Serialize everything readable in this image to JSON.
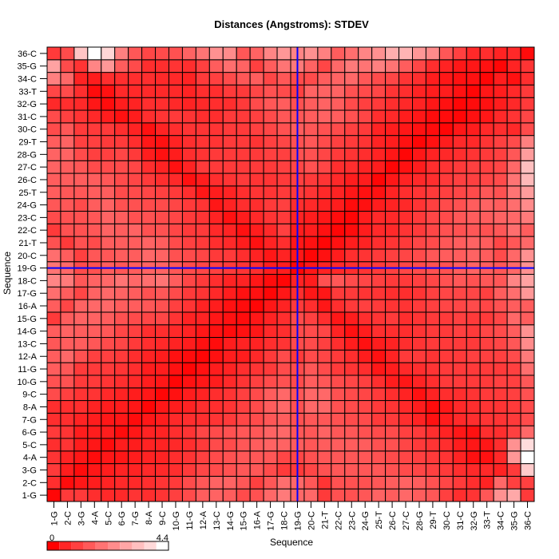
{
  "chart_data": {
    "type": "heatmap",
    "title": "Distances (Angstroms):  STDEV",
    "xlabel": "Sequence",
    "ylabel": "Sequence",
    "labels": [
      "1-G",
      "2-C",
      "3-G",
      "4-A",
      "5-C",
      "6-G",
      "7-G",
      "8-A",
      "9-C",
      "10-G",
      "11-G",
      "12-A",
      "13-C",
      "14-G",
      "15-G",
      "16-A",
      "17-G",
      "18-C",
      "19-G",
      "20-C",
      "21-T",
      "22-C",
      "23-C",
      "24-G",
      "25-T",
      "26-C",
      "27-C",
      "28-G",
      "29-T",
      "30-C",
      "31-C",
      "32-G",
      "33-T",
      "34-C",
      "35-G",
      "36-C"
    ],
    "color_scale": {
      "min": 0,
      "max": 4.4,
      "min_label": "0",
      "max_label": "4.4",
      "low_color": "#ff0000",
      "high_color": "#ffffff",
      "bins": 10
    },
    "crosshair": {
      "x": 18.5,
      "y": 18.5,
      "color": "#0000ff"
    },
    "values_note_rows": "rows ordered from 1-G (bottom) to 36-C (top); columns 1-G to 36-C",
    "values": [
      [
        0.1,
        1.0,
        1.0,
        0.8,
        0.7,
        0.7,
        0.9,
        0.8,
        0.9,
        1.1,
        1.3,
        1.6,
        1.7,
        1.6,
        1.3,
        1.4,
        1.8,
        2.1,
        1.8,
        1.8,
        1.0,
        1.4,
        1.4,
        1.5,
        1.7,
        1.6,
        1.8,
        1.6,
        1.5,
        1.1,
        0.8,
        0.9,
        1.5,
        2.5,
        2.9,
        1.0
      ],
      [
        0.8,
        0.2,
        0.4,
        0.5,
        0.6,
        0.7,
        0.7,
        0.8,
        0.9,
        1.0,
        1.3,
        1.5,
        1.7,
        1.7,
        1.5,
        1.1,
        1.5,
        1.9,
        1.8,
        1.5,
        0.9,
        1.4,
        1.4,
        1.4,
        1.5,
        1.6,
        1.7,
        1.6,
        1.4,
        1.2,
        1.0,
        0.8,
        0.6,
        1.8,
        1.1,
        1.1
      ],
      [
        1.0,
        0.5,
        0.2,
        0.4,
        0.5,
        0.6,
        0.6,
        0.7,
        0.7,
        0.8,
        1.0,
        1.2,
        1.3,
        1.4,
        1.5,
        1.5,
        1.3,
        1.0,
        1.0,
        1.2,
        1.4,
        1.5,
        1.5,
        1.5,
        1.5,
        1.4,
        1.3,
        1.2,
        1.1,
        1.0,
        0.8,
        0.7,
        0.7,
        0.6,
        1.0,
        3.5
      ],
      [
        0.9,
        0.6,
        0.4,
        0.2,
        0.4,
        0.4,
        0.5,
        0.6,
        0.6,
        0.8,
        0.9,
        1.1,
        1.3,
        1.4,
        1.5,
        1.5,
        1.5,
        1.2,
        1.2,
        1.4,
        1.5,
        1.5,
        1.5,
        1.5,
        1.4,
        1.3,
        1.2,
        1.1,
        1.0,
        0.9,
        0.6,
        0.3,
        0.3,
        0.7,
        2.6,
        4.4
      ],
      [
        0.8,
        0.9,
        0.5,
        0.4,
        0.2,
        0.5,
        0.5,
        0.6,
        0.6,
        0.7,
        0.8,
        1.0,
        1.3,
        1.3,
        1.5,
        1.6,
        1.7,
        1.7,
        1.6,
        1.5,
        1.6,
        1.6,
        1.6,
        1.6,
        1.4,
        1.4,
        1.2,
        1.0,
        0.9,
        0.8,
        0.5,
        0.4,
        0.4,
        0.8,
        2.5,
        3.8
      ],
      [
        1.0,
        0.9,
        0.5,
        0.5,
        0.5,
        0.2,
        0.4,
        0.6,
        0.6,
        0.8,
        0.9,
        1.2,
        1.3,
        1.4,
        1.5,
        1.5,
        1.7,
        1.8,
        1.5,
        1.5,
        1.7,
        1.5,
        1.5,
        1.4,
        1.3,
        1.3,
        1.1,
        1.0,
        0.8,
        0.6,
        0.4,
        0.3,
        0.8,
        0.8,
        1.1,
        1.8
      ],
      [
        0.8,
        0.8,
        0.6,
        0.5,
        0.4,
        0.4,
        0.2,
        0.4,
        0.5,
        0.7,
        0.8,
        0.8,
        0.9,
        1.0,
        1.2,
        1.3,
        1.5,
        1.6,
        1.4,
        1.5,
        1.5,
        1.4,
        1.3,
        1.3,
        1.0,
        1.0,
        0.8,
        0.6,
        0.3,
        0.5,
        0.7,
        0.8,
        0.9,
        0.9,
        1.0,
        1.3
      ],
      [
        0.8,
        0.8,
        0.8,
        0.6,
        0.5,
        0.5,
        0.4,
        0.1,
        0.4,
        0.5,
        0.6,
        0.8,
        0.8,
        0.9,
        1.1,
        1.3,
        1.6,
        1.8,
        1.4,
        1.8,
        1.8,
        1.4,
        1.3,
        1.2,
        1.0,
        0.9,
        0.7,
        0.5,
        0.2,
        0.4,
        0.7,
        0.8,
        0.9,
        0.9,
        1.0,
        1.3
      ],
      [
        1.3,
        1.1,
        0.9,
        0.9,
        0.7,
        0.6,
        0.5,
        0.4,
        0.1,
        0.3,
        0.5,
        0.6,
        0.8,
        0.9,
        1.1,
        1.3,
        1.6,
        1.8,
        1.5,
        1.8,
        1.8,
        1.4,
        1.3,
        1.2,
        1.0,
        0.8,
        0.6,
        0.3,
        0.6,
        0.8,
        0.8,
        0.9,
        1.0,
        1.0,
        1.1,
        1.4
      ],
      [
        1.4,
        1.4,
        1.0,
        1.0,
        0.9,
        0.8,
        0.7,
        0.5,
        0.4,
        0.1,
        0.3,
        0.4,
        0.5,
        0.7,
        0.9,
        1.1,
        1.3,
        1.4,
        1.3,
        1.6,
        1.5,
        1.3,
        1.2,
        1.1,
        0.8,
        0.5,
        0.4,
        0.6,
        0.8,
        1.0,
        1.0,
        1.0,
        1.0,
        1.1,
        1.1,
        1.5
      ],
      [
        1.6,
        1.5,
        1.0,
        1.0,
        1.0,
        0.9,
        0.8,
        0.5,
        0.5,
        0.3,
        0.1,
        0.3,
        0.5,
        0.6,
        0.8,
        0.9,
        1.0,
        1.3,
        1.3,
        1.5,
        1.3,
        1.0,
        0.9,
        0.8,
        0.4,
        0.5,
        0.7,
        0.8,
        0.9,
        1.0,
        1.0,
        1.0,
        1.0,
        1.0,
        1.1,
        1.9
      ],
      [
        1.6,
        1.8,
        1.4,
        1.1,
        1.1,
        1.0,
        0.8,
        0.6,
        0.5,
        0.3,
        0.2,
        0.1,
        0.3,
        0.5,
        0.5,
        0.7,
        1.0,
        1.3,
        1.0,
        1.3,
        1.2,
        1.0,
        0.8,
        0.5,
        0.3,
        0.6,
        1.0,
        1.0,
        0.9,
        1.0,
        1.0,
        1.1,
        1.1,
        1.1,
        1.3,
        2.1
      ],
      [
        1.5,
        1.6,
        1.6,
        1.5,
        1.3,
        1.2,
        1.0,
        0.8,
        0.7,
        0.6,
        0.5,
        0.3,
        0.2,
        0.5,
        0.6,
        0.6,
        0.8,
        0.9,
        1.3,
        1.3,
        1.1,
        0.8,
        0.5,
        0.3,
        0.5,
        0.6,
        0.8,
        0.9,
        1.0,
        1.0,
        1.0,
        1.0,
        1.1,
        1.2,
        1.5,
        2.4
      ],
      [
        1.6,
        1.7,
        1.6,
        1.6,
        1.5,
        1.2,
        1.1,
        0.8,
        0.8,
        0.7,
        0.6,
        0.4,
        0.3,
        0.2,
        0.3,
        0.4,
        0.7,
        0.8,
        1.3,
        1.3,
        1.2,
        0.6,
        0.3,
        0.5,
        0.8,
        0.8,
        0.8,
        0.9,
        1.0,
        1.0,
        1.1,
        1.0,
        1.2,
        1.3,
        1.6,
        2.5
      ],
      [
        1.0,
        1.6,
        1.7,
        1.7,
        1.6,
        1.4,
        1.3,
        1.2,
        1.2,
        0.9,
        0.6,
        0.6,
        0.4,
        0.3,
        0.2,
        0.4,
        0.6,
        0.8,
        1.3,
        1.1,
        0.8,
        0.4,
        0.5,
        0.8,
        0.9,
        1.0,
        0.8,
        0.9,
        1.0,
        1.0,
        1.1,
        1.0,
        1.0,
        1.2,
        1.8,
        1.6
      ],
      [
        1.6,
        1.2,
        1.7,
        1.8,
        1.8,
        1.6,
        1.6,
        1.5,
        1.4,
        1.1,
        0.9,
        0.6,
        0.5,
        0.3,
        0.2,
        0.1,
        0.4,
        0.6,
        1.0,
        0.8,
        0.4,
        0.8,
        1.0,
        1.1,
        1.0,
        0.9,
        0.9,
        1.0,
        1.1,
        1.2,
        1.2,
        1.3,
        1.2,
        1.4,
        1.6,
        1.6
      ],
      [
        1.9,
        1.6,
        1.2,
        1.7,
        1.8,
        1.7,
        1.6,
        1.4,
        1.5,
        1.3,
        1.0,
        0.9,
        0.7,
        0.5,
        0.3,
        0.3,
        0.1,
        0.4,
        0.8,
        0.4,
        0.4,
        1.0,
        1.0,
        0.9,
        0.9,
        0.8,
        0.8,
        0.9,
        1.1,
        1.2,
        1.2,
        1.2,
        1.1,
        1.6,
        1.9,
        2.6
      ],
      [
        2.3,
        2.1,
        1.5,
        1.7,
        1.8,
        2.0,
        1.8,
        1.9,
        2.0,
        1.6,
        1.2,
        1.0,
        0.8,
        0.6,
        0.6,
        0.4,
        0.2,
        0.1,
        0.6,
        0.5,
        1.4,
        1.5,
        1.3,
        1.2,
        1.1,
        1.0,
        1.0,
        1.1,
        1.2,
        1.4,
        1.5,
        1.4,
        1.5,
        1.5,
        2.3,
        2.8
      ],
      [
        2.0,
        1.8,
        1.3,
        1.4,
        1.6,
        1.5,
        1.6,
        1.7,
        1.7,
        1.5,
        1.3,
        1.2,
        1.1,
        1.0,
        0.9,
        0.8,
        0.5,
        0.5,
        0.1,
        0.4,
        0.6,
        0.7,
        0.8,
        0.9,
        1.0,
        1.1,
        1.2,
        1.3,
        1.4,
        1.4,
        1.6,
        1.7,
        1.6,
        1.5,
        1.8,
        2.5
      ],
      [
        1.9,
        1.6,
        1.1,
        1.5,
        1.5,
        1.6,
        1.6,
        1.8,
        1.7,
        1.4,
        1.3,
        1.2,
        1.0,
        1.0,
        0.8,
        0.6,
        0.4,
        0.6,
        0.4,
        0.1,
        0.3,
        0.5,
        0.8,
        0.9,
        1.0,
        1.1,
        1.2,
        1.3,
        1.5,
        1.6,
        1.6,
        1.7,
        1.6,
        1.3,
        1.8,
        2.5
      ],
      [
        1.4,
        1.0,
        1.4,
        1.3,
        1.6,
        1.6,
        1.6,
        1.7,
        1.6,
        1.3,
        1.1,
        1.0,
        0.8,
        0.7,
        0.5,
        0.3,
        0.6,
        0.8,
        0.4,
        0.3,
        0.1,
        0.3,
        0.5,
        0.6,
        0.8,
        0.9,
        1.0,
        1.2,
        1.3,
        1.5,
        1.6,
        1.7,
        1.6,
        1.2,
        1.5,
        1.8
      ],
      [
        1.0,
        1.4,
        1.4,
        1.5,
        1.7,
        1.6,
        1.7,
        1.4,
        1.4,
        1.2,
        1.0,
        1.0,
        0.7,
        0.6,
        0.3,
        0.5,
        0.7,
        1.1,
        0.5,
        0.5,
        0.3,
        0.1,
        0.2,
        0.5,
        0.7,
        0.7,
        0.9,
        1.0,
        1.2,
        1.4,
        1.4,
        1.5,
        1.4,
        1.5,
        1.9,
        1.6
      ],
      [
        1.3,
        1.4,
        1.4,
        1.5,
        1.7,
        1.6,
        1.4,
        1.4,
        1.3,
        1.2,
        1.0,
        0.9,
        0.6,
        0.3,
        0.5,
        0.7,
        0.9,
        1.0,
        0.6,
        0.5,
        0.4,
        0.2,
        0.1,
        0.5,
        0.7,
        0.7,
        0.8,
        1.0,
        1.2,
        1.3,
        1.5,
        1.6,
        1.6,
        1.7,
        1.8,
        2.1
      ],
      [
        1.5,
        1.5,
        1.3,
        1.6,
        1.7,
        1.4,
        1.4,
        1.3,
        1.3,
        1.2,
        1.0,
        0.9,
        0.4,
        0.6,
        0.8,
        0.8,
        1.0,
        1.1,
        0.8,
        0.7,
        0.6,
        0.5,
        0.2,
        0.3,
        0.5,
        0.6,
        0.7,
        0.9,
        1.1,
        1.3,
        1.4,
        1.6,
        1.7,
        1.6,
        1.9,
        2.4
      ],
      [
        1.6,
        1.5,
        1.5,
        1.6,
        1.6,
        1.3,
        1.3,
        1.2,
        1.1,
        1.0,
        0.8,
        0.4,
        0.5,
        0.6,
        0.8,
        0.9,
        0.9,
        1.0,
        1.0,
        0.9,
        0.7,
        0.6,
        0.4,
        0.3,
        0.3,
        0.6,
        0.8,
        0.9,
        1.0,
        1.1,
        1.2,
        1.3,
        1.5,
        1.4,
        2.0,
        2.7
      ],
      [
        1.6,
        1.6,
        1.6,
        1.6,
        1.5,
        1.3,
        1.2,
        1.0,
        0.8,
        0.7,
        0.3,
        0.5,
        0.8,
        0.9,
        1.0,
        0.9,
        0.9,
        1.0,
        1.1,
        1.0,
        0.9,
        0.7,
        0.5,
        0.5,
        0.1,
        0.4,
        0.6,
        0.7,
        0.8,
        1.0,
        1.1,
        1.1,
        1.2,
        1.3,
        2.0,
        3.2
      ],
      [
        1.7,
        1.6,
        1.5,
        1.3,
        1.3,
        1.3,
        1.2,
        0.8,
        0.6,
        0.3,
        0.6,
        1.0,
        1.0,
        1.0,
        1.0,
        1.0,
        1.0,
        1.1,
        1.2,
        1.4,
        1.2,
        0.8,
        0.8,
        0.6,
        0.5,
        0.1,
        0.3,
        0.5,
        0.8,
        0.9,
        1.0,
        1.1,
        1.1,
        1.2,
        1.8,
        3.3
      ],
      [
        1.7,
        1.7,
        1.3,
        1.1,
        1.1,
        1.2,
        1.0,
        0.5,
        0.3,
        0.5,
        0.8,
        0.9,
        1.0,
        1.0,
        1.0,
        1.0,
        1.1,
        1.1,
        1.4,
        1.4,
        1.2,
        1.0,
        0.9,
        0.8,
        0.6,
        0.4,
        0.1,
        0.4,
        0.6,
        0.7,
        0.8,
        0.9,
        1.0,
        1.1,
        1.5,
        2.7
      ],
      [
        1.6,
        1.7,
        1.1,
        1.1,
        1.0,
        1.0,
        0.8,
        0.4,
        0.3,
        0.6,
        0.8,
        0.9,
        0.9,
        1.0,
        1.0,
        0.9,
        1.1,
        1.2,
        1.4,
        1.5,
        1.3,
        1.1,
        1.0,
        0.9,
        0.6,
        0.5,
        0.3,
        0.1,
        0.3,
        0.5,
        0.7,
        0.7,
        0.9,
        1.1,
        1.3,
        2.2
      ],
      [
        1.3,
        1.5,
        1.0,
        1.0,
        1.0,
        0.8,
        0.6,
        0.3,
        0.6,
        0.8,
        0.9,
        0.9,
        0.9,
        1.0,
        1.0,
        1.1,
        1.2,
        1.4,
        1.6,
        1.5,
        1.4,
        1.3,
        1.1,
        1.0,
        0.6,
        0.5,
        0.4,
        0.3,
        0.2,
        0.1,
        0.4,
        0.5,
        0.7,
        0.8,
        0.7,
        1.3
      ],
      [
        1.3,
        1.1,
        0.9,
        0.7,
        0.5,
        0.3,
        0.5,
        0.8,
        0.9,
        1.0,
        0.9,
        0.8,
        0.8,
        1.0,
        1.0,
        1.1,
        1.3,
        1.5,
        1.5,
        1.6,
        1.7,
        1.6,
        1.4,
        1.2,
        0.8,
        0.7,
        0.5,
        0.4,
        0.2,
        0.2,
        0.1,
        0.3,
        0.4,
        0.7,
        0.9,
        1.2
      ],
      [
        0.7,
        0.8,
        0.7,
        0.4,
        0.2,
        0.5,
        0.6,
        0.8,
        0.8,
        0.7,
        0.6,
        0.7,
        0.8,
        0.8,
        1.0,
        1.3,
        1.5,
        1.6,
        1.4,
        1.6,
        1.7,
        1.6,
        1.3,
        1.1,
        1.0,
        0.8,
        0.7,
        0.6,
        0.4,
        0.3,
        0.1,
        0.2,
        0.3,
        0.5,
        0.7,
        1.0
      ],
      [
        1.2,
        1.3,
        0.8,
        0.2,
        0.3,
        0.7,
        0.7,
        0.7,
        0.7,
        0.7,
        0.6,
        0.8,
        0.8,
        1.0,
        1.0,
        1.2,
        1.4,
        1.3,
        1.1,
        1.7,
        1.7,
        1.7,
        1.4,
        1.3,
        1.2,
        0.9,
        0.8,
        0.6,
        0.5,
        0.5,
        0.3,
        0.1,
        0.4,
        0.5,
        0.7,
        1.0
      ],
      [
        2.2,
        1.8,
        0.6,
        0.5,
        0.8,
        0.8,
        0.8,
        0.8,
        0.7,
        0.7,
        0.6,
        1.0,
        1.1,
        1.3,
        1.5,
        1.6,
        1.2,
        1.5,
        1.3,
        1.3,
        1.6,
        1.7,
        1.8,
        1.5,
        1.3,
        1.2,
        0.9,
        0.8,
        0.5,
        0.4,
        0.3,
        0.3,
        0.1,
        0.5,
        0.3,
        0.8
      ],
      [
        2.8,
        1.3,
        0.9,
        2.3,
        2.6,
        1.6,
        1.3,
        0.8,
        0.8,
        0.9,
        0.8,
        1.1,
        1.6,
        1.9,
        1.7,
        1.1,
        1.6,
        2.0,
        2.1,
        1.7,
        1.2,
        1.8,
        2.1,
        2.0,
        2.2,
        2.0,
        1.6,
        1.2,
        0.8,
        0.6,
        0.4,
        0.4,
        0.3,
        0.1,
        0.6,
        0.9
      ],
      [
        1.0,
        1.3,
        3.4,
        4.4,
        3.7,
        2.2,
        1.5,
        1.2,
        1.3,
        1.4,
        1.7,
        2.0,
        2.5,
        2.4,
        1.5,
        1.7,
        2.3,
        2.6,
        2.3,
        2.5,
        2.2,
        1.6,
        1.9,
        2.3,
        2.5,
        3.0,
        3.1,
        2.6,
        2.4,
        1.5,
        1.1,
        0.7,
        0.8,
        0.6,
        0.7,
        0.2
      ]
    ]
  }
}
